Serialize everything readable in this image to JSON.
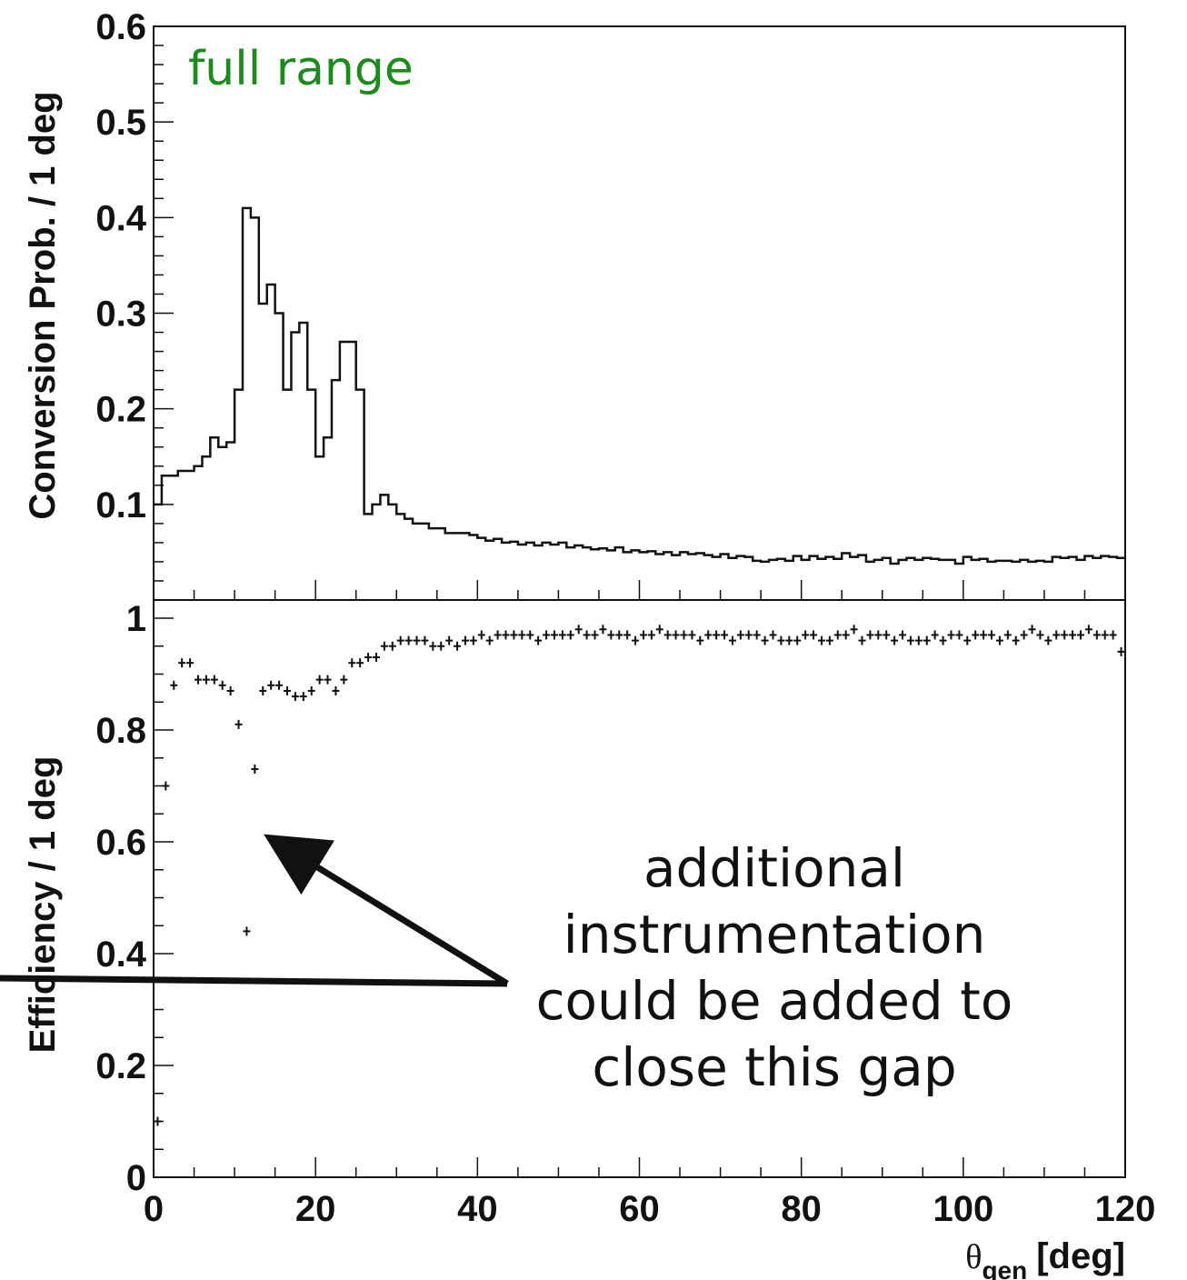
{
  "chart_data": [
    {
      "type": "histogram",
      "panel": "top",
      "annotation": "full range",
      "ylabel": "Conversion Prob. / 1 deg",
      "xlim": [
        0,
        120
      ],
      "ylim": [
        0.0,
        0.6
      ],
      "yticks": [
        "0.1",
        "0.2",
        "0.3",
        "0.4",
        "0.5",
        "0.6"
      ],
      "bin_width": 1,
      "values": [
        0.1,
        0.13,
        0.13,
        0.135,
        0.135,
        0.14,
        0.15,
        0.17,
        0.16,
        0.165,
        0.22,
        0.41,
        0.4,
        0.31,
        0.33,
        0.3,
        0.22,
        0.28,
        0.29,
        0.22,
        0.15,
        0.17,
        0.23,
        0.27,
        0.27,
        0.22,
        0.09,
        0.1,
        0.11,
        0.1,
        0.09,
        0.085,
        0.08,
        0.08,
        0.075,
        0.075,
        0.07,
        0.07,
        0.07,
        0.068,
        0.065,
        0.062,
        0.064,
        0.06,
        0.061,
        0.058,
        0.06,
        0.057,
        0.06,
        0.058,
        0.06,
        0.055,
        0.057,
        0.055,
        0.053,
        0.054,
        0.052,
        0.055,
        0.05,
        0.052,
        0.05,
        0.051,
        0.048,
        0.05,
        0.047,
        0.05,
        0.048,
        0.049,
        0.047,
        0.045,
        0.048,
        0.044,
        0.046,
        0.045,
        0.041,
        0.04,
        0.042,
        0.043,
        0.041,
        0.046,
        0.042,
        0.046,
        0.043,
        0.045,
        0.043,
        0.049,
        0.045,
        0.047,
        0.04,
        0.042,
        0.044,
        0.038,
        0.042,
        0.044,
        0.042,
        0.044,
        0.043,
        0.042,
        0.042,
        0.038,
        0.045,
        0.042,
        0.043,
        0.04,
        0.041,
        0.041,
        0.04,
        0.042,
        0.04,
        0.041,
        0.04,
        0.045,
        0.044,
        0.045,
        0.042,
        0.046,
        0.044,
        0.046,
        0.045,
        0.044
      ]
    },
    {
      "type": "scatter",
      "panel": "bottom",
      "ylabel": "Efficiency / 1 deg",
      "xlabel_main": "θ",
      "xlabel_sub": "gen",
      "xlabel_unit": "[deg]",
      "xlim": [
        0,
        120
      ],
      "ylim": [
        0,
        1.0
      ],
      "xticks": [
        "0",
        "20",
        "40",
        "60",
        "80",
        "100",
        "120"
      ],
      "yticks": [
        "0",
        "0.2",
        "0.4",
        "0.6",
        "0.8",
        "1"
      ],
      "x": [
        0.5,
        1.5,
        2.5,
        3.5,
        4.5,
        5.5,
        6.5,
        7.5,
        8.5,
        9.5,
        10.5,
        11.5,
        12.5,
        13.5,
        14.5,
        15.5,
        16.5,
        17.5,
        18.5,
        19.5,
        20.5,
        21.5,
        22.5,
        23.5,
        24.5,
        25.5,
        26.5,
        27.5,
        28.5,
        29.5,
        30.5,
        31.5,
        32.5,
        33.5,
        34.5,
        35.5,
        36.5,
        37.5,
        38.5,
        39.5,
        40.5,
        41.5,
        42.5,
        43.5,
        44.5,
        45.5,
        46.5,
        47.5,
        48.5,
        49.5,
        50.5,
        51.5,
        52.5,
        53.5,
        54.5,
        55.5,
        56.5,
        57.5,
        58.5,
        59.5,
        60.5,
        61.5,
        62.5,
        63.5,
        64.5,
        65.5,
        66.5,
        67.5,
        68.5,
        69.5,
        70.5,
        71.5,
        72.5,
        73.5,
        74.5,
        75.5,
        76.5,
        77.5,
        78.5,
        79.5,
        80.5,
        81.5,
        82.5,
        83.5,
        84.5,
        85.5,
        86.5,
        87.5,
        88.5,
        89.5,
        90.5,
        91.5,
        92.5,
        93.5,
        94.5,
        95.5,
        96.5,
        97.5,
        98.5,
        99.5,
        100.5,
        101.5,
        102.5,
        103.5,
        104.5,
        105.5,
        106.5,
        107.5,
        108.5,
        109.5,
        110.5,
        111.5,
        112.5,
        113.5,
        114.5,
        115.5,
        116.5,
        117.5,
        118.5,
        119.5
      ],
      "y": [
        0.1,
        0.7,
        0.88,
        0.92,
        0.92,
        0.89,
        0.89,
        0.89,
        0.88,
        0.87,
        0.81,
        0.44,
        0.73,
        0.87,
        0.88,
        0.88,
        0.87,
        0.86,
        0.86,
        0.87,
        0.89,
        0.89,
        0.87,
        0.89,
        0.92,
        0.92,
        0.93,
        0.93,
        0.95,
        0.95,
        0.96,
        0.96,
        0.96,
        0.96,
        0.95,
        0.95,
        0.96,
        0.95,
        0.96,
        0.96,
        0.97,
        0.96,
        0.97,
        0.97,
        0.97,
        0.97,
        0.97,
        0.96,
        0.97,
        0.97,
        0.97,
        0.97,
        0.98,
        0.97,
        0.97,
        0.98,
        0.97,
        0.97,
        0.97,
        0.96,
        0.97,
        0.97,
        0.98,
        0.97,
        0.97,
        0.97,
        0.97,
        0.96,
        0.97,
        0.97,
        0.97,
        0.96,
        0.97,
        0.97,
        0.97,
        0.96,
        0.97,
        0.96,
        0.96,
        0.96,
        0.97,
        0.97,
        0.96,
        0.96,
        0.97,
        0.97,
        0.98,
        0.96,
        0.97,
        0.97,
        0.97,
        0.96,
        0.97,
        0.96,
        0.96,
        0.96,
        0.97,
        0.96,
        0.97,
        0.97,
        0.96,
        0.97,
        0.97,
        0.97,
        0.96,
        0.97,
        0.96,
        0.97,
        0.98,
        0.97,
        0.96,
        0.97,
        0.97,
        0.97,
        0.97,
        0.98,
        0.97,
        0.97,
        0.97,
        0.94
      ]
    }
  ],
  "callout": {
    "lines": [
      "additional",
      "instrumentation",
      "could be added to",
      "close this gap"
    ]
  },
  "colors": {
    "axis": "#111111",
    "data": "#111111",
    "tag": "#1a8c1a",
    "background": "#ffffff"
  }
}
